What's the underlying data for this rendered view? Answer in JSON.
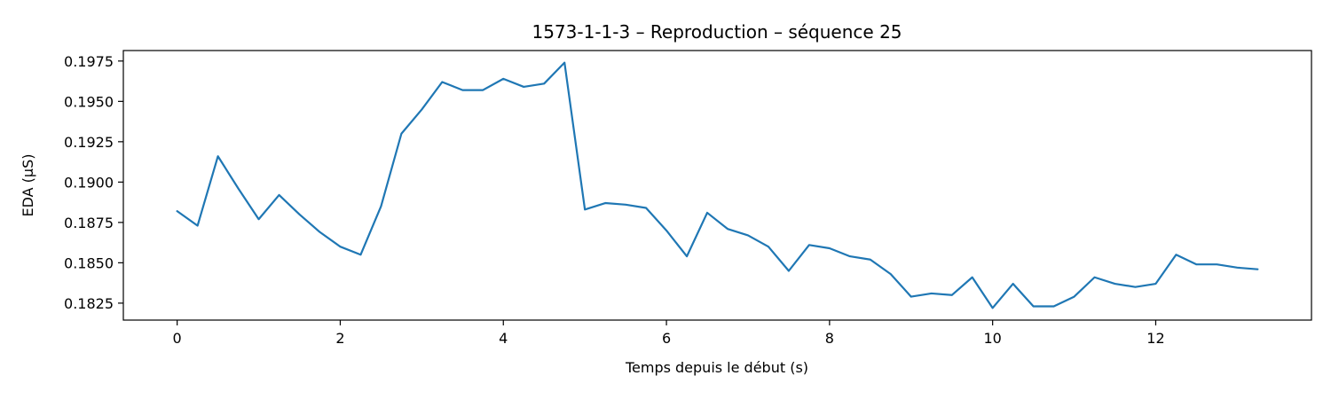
{
  "chart_data": {
    "type": "line",
    "title": "1573-1-1-3 – Reproduction – séquence 25",
    "xlabel": "Temps depuis le début (s)",
    "ylabel": "EDA (µS)",
    "xlim": [
      -0.66,
      13.91
    ],
    "ylim": [
      0.18145,
      0.19815
    ],
    "xticks": [
      0,
      2,
      4,
      6,
      8,
      10,
      12
    ],
    "yticks": [
      0.1825,
      0.185,
      0.1875,
      0.19,
      0.1925,
      0.195,
      0.1975
    ],
    "ytick_labels": [
      "0.1825",
      "0.1850",
      "0.1875",
      "0.1900",
      "0.1925",
      "0.1950",
      "0.1975"
    ],
    "grid": false,
    "series": [
      {
        "color": "#1f77b4",
        "x": [
          0,
          0.25,
          0.5,
          0.75,
          1.0,
          1.25,
          1.5,
          1.75,
          2.0,
          2.25,
          2.5,
          2.75,
          3.0,
          3.25,
          3.5,
          3.75,
          4.0,
          4.25,
          4.5,
          4.75,
          5.0,
          5.25,
          5.5,
          5.75,
          6.0,
          6.25,
          6.5,
          6.75,
          7.0,
          7.25,
          7.5,
          7.75,
          8.0,
          8.25,
          8.5,
          8.75,
          9.0,
          9.25,
          9.5,
          9.75,
          10.0,
          10.25,
          10.5,
          10.75,
          11.0,
          11.25,
          11.5,
          11.75,
          12.0,
          12.25,
          12.5,
          12.75,
          13.0,
          13.25
        ],
        "y": [
          0.1882,
          0.1873,
          0.1916,
          0.1896,
          0.1877,
          0.1892,
          0.188,
          0.1869,
          0.186,
          0.1855,
          0.1885,
          0.193,
          0.1945,
          0.1962,
          0.1957,
          0.1957,
          0.1964,
          0.1959,
          0.1961,
          0.1974,
          0.1883,
          0.1887,
          0.1886,
          0.1884,
          0.187,
          0.1854,
          0.1881,
          0.1871,
          0.1867,
          0.186,
          0.1845,
          0.1861,
          0.1859,
          0.1854,
          0.1852,
          0.1843,
          0.1829,
          0.1831,
          0.183,
          0.1841,
          0.1822,
          0.1837,
          0.1823,
          0.1823,
          0.1829,
          0.1841,
          0.1837,
          0.1835,
          0.1837,
          0.1855,
          0.1849,
          0.1849,
          0.1847,
          0.1846
        ]
      }
    ]
  }
}
